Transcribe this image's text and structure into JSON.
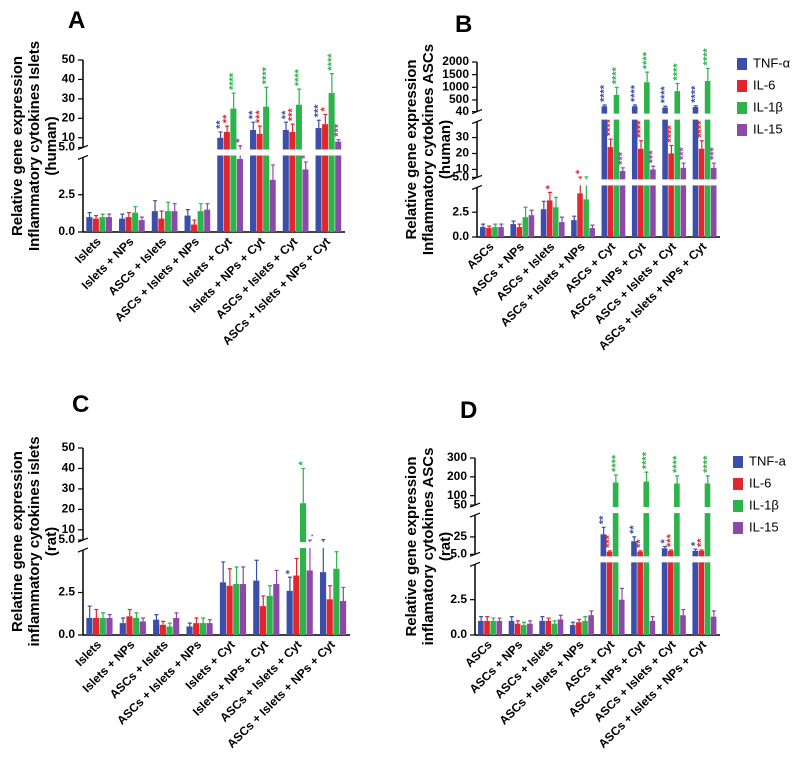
{
  "chart_data": [
    {
      "type": "bar",
      "panel": "A",
      "y_label": [
        "Relative gene expression",
        "Inflammatory cytokines Islets",
        "(human)"
      ],
      "categories": [
        "Islets",
        "Islets + NPs",
        "ASCs + Islets",
        "ASCs + Islets + NPs",
        "Islets + Cyt",
        "Islets + NPs + Cyt",
        "ASCs + Islets + Cyt",
        "ASCs + Islets + NPs + Cyt"
      ],
      "y_segments": [
        {
          "ylim": [
            0,
            5
          ],
          "yticks": [
            {
              "value": 0,
              "label": "0.0"
            },
            {
              "value": 2.5,
              "label": "2.5"
            },
            {
              "value": 5,
              "label": "5.0"
            }
          ]
        },
        {
          "ylim": [
            5,
            50
          ],
          "yticks": [
            10,
            20,
            30,
            40,
            50
          ]
        }
      ],
      "series": [
        {
          "color": "#3b4eaa",
          "values": [
            1.0,
            0.9,
            1.4,
            1.1,
            10,
            14,
            14,
            15
          ],
          "errors": [
            0.3,
            0.3,
            0.7,
            0.4,
            3,
            4,
            4,
            4
          ],
          "annotations": [
            null,
            null,
            null,
            null,
            "**",
            "**",
            "**",
            "***"
          ]
        },
        {
          "color": "#e3262d",
          "values": [
            0.9,
            1.0,
            0.9,
            0.5,
            13,
            12,
            13,
            17
          ],
          "errors": [
            0.2,
            0.3,
            0.5,
            0.3,
            3,
            4,
            4,
            5
          ],
          "annotations": [
            null,
            null,
            null,
            null,
            "**",
            "***",
            "***",
            "*"
          ]
        },
        {
          "color": "#2cb34a",
          "values": [
            1.0,
            1.3,
            1.4,
            1.4,
            25,
            26,
            27,
            33
          ],
          "errors": [
            0.2,
            0.4,
            0.6,
            0.5,
            8,
            10,
            8,
            10
          ],
          "annotations": [
            null,
            null,
            null,
            null,
            "****",
            "****",
            "****",
            "****"
          ]
        },
        {
          "color": "#8b4aa8",
          "values": [
            1.0,
            0.8,
            1.4,
            1.5,
            4.9,
            3.5,
            4.2,
            8
          ],
          "errors": [
            0.2,
            0.2,
            0.5,
            0.4,
            1,
            1,
            0.5,
            1
          ],
          "annotations": [
            null,
            null,
            null,
            null,
            "*",
            null,
            "*",
            "***"
          ]
        }
      ]
    },
    {
      "type": "bar",
      "panel": "B",
      "y_label": [
        "Relative gene expression",
        "Inflammatory cytokines ASCs",
        "(human)"
      ],
      "categories": [
        "ASCs",
        "ASCs + NPs",
        "ASCs + Islets",
        "ASCs + Islets + NPs",
        "ASCs + Cyt",
        "ASCs + NPs + Cyt",
        "ASCs + Islets + Cyt",
        "ASCs + Islets + NPs + Cyt"
      ],
      "y_segments": [
        {
          "ylim": [
            0,
            5
          ],
          "yticks": [
            {
              "value": 0,
              "label": "0.0"
            },
            {
              "value": 2.5,
              "label": "2.5"
            },
            {
              "value": 5,
              "label": "5.0"
            }
          ]
        },
        {
          "ylim": [
            5,
            40
          ],
          "yticks": [
            10,
            20,
            30,
            40
          ]
        },
        {
          "ylim": [
            40,
            2000
          ],
          "yticks": [
            500,
            1000,
            1500,
            2000
          ]
        }
      ],
      "legend": "right",
      "series": [
        {
          "name": "TNF-α",
          "color": "#3b4eaa",
          "values": [
            1.0,
            1.3,
            2.8,
            1.7,
            250,
            250,
            200,
            220
          ],
          "errors": [
            0.3,
            0.3,
            0.8,
            0.4,
            50,
            50,
            50,
            50
          ],
          "annotations": [
            null,
            null,
            null,
            null,
            "****",
            "****",
            "****",
            "****"
          ]
        },
        {
          "name": "IL-6",
          "color": "#e3262d",
          "values": [
            0.9,
            1.0,
            3.7,
            4.4,
            24,
            23,
            20,
            23
          ],
          "errors": [
            0.2,
            0.3,
            0.8,
            0.8,
            5,
            5,
            5,
            5
          ],
          "annotations": [
            null,
            null,
            "*",
            "*",
            "****",
            "****",
            "****",
            "****"
          ]
        },
        {
          "name": "IL-1β",
          "color": "#2cb34a",
          "values": [
            1.0,
            2.0,
            3.0,
            3.8,
            700,
            1200,
            850,
            1250
          ],
          "errors": [
            0.3,
            1.0,
            1.0,
            1.5,
            300,
            400,
            300,
            500
          ],
          "annotations": [
            null,
            null,
            null,
            null,
            "****",
            "****",
            "****",
            "****"
          ]
        },
        {
          "name": "IL-15",
          "color": "#8b4aa8",
          "values": [
            1.0,
            2.2,
            1.5,
            0.9,
            9,
            10,
            11,
            11
          ],
          "errors": [
            0.3,
            0.5,
            0.5,
            0.3,
            2,
            2,
            3,
            3
          ],
          "annotations": [
            null,
            null,
            null,
            null,
            "***",
            "***",
            "***",
            "***"
          ]
        }
      ]
    },
    {
      "type": "bar",
      "panel": "C",
      "y_label": [
        "Relatine gene expression",
        "inflammatory cytokines islets",
        "(rat)"
      ],
      "categories": [
        "Islets",
        "Islets + NPs",
        "ASCs + Islets",
        "ASCs + Islets + NPs",
        "Islets + Cyt",
        "Islets + NPs + Cyt",
        "ASCs + Islets + Cyt",
        "ASCs + Islets + NPs + Cyt"
      ],
      "y_segments": [
        {
          "ylim": [
            0,
            5
          ],
          "yticks": [
            {
              "value": 0,
              "label": "0.0"
            },
            {
              "value": 2.5,
              "label": "2.5"
            },
            {
              "value": 5,
              "label": "5.0"
            }
          ]
        },
        {
          "ylim": [
            5,
            50
          ],
          "yticks": [
            10,
            20,
            30,
            40,
            50
          ]
        }
      ],
      "series": [
        {
          "color": "#3b4eaa",
          "values": [
            1.0,
            0.7,
            0.9,
            0.5,
            3.1,
            3.2,
            2.6,
            3.7
          ],
          "errors": [
            0.7,
            0.3,
            0.3,
            0.2,
            1.2,
            1.2,
            0.8,
            1.5
          ],
          "annotations": [
            null,
            null,
            null,
            null,
            null,
            null,
            "*",
            null
          ]
        },
        {
          "color": "#e3262d",
          "values": [
            1.0,
            1.1,
            0.6,
            0.7,
            2.9,
            1.7,
            3.5,
            2.1
          ],
          "errors": [
            0.5,
            0.4,
            0.2,
            0.3,
            1.0,
            0.6,
            1.0,
            0.8
          ],
          "annotations": [
            null,
            null,
            null,
            null,
            null,
            null,
            null,
            null
          ]
        },
        {
          "color": "#2cb34a",
          "values": [
            1.0,
            1.0,
            0.5,
            0.7,
            3.0,
            2.3,
            23,
            3.9
          ],
          "errors": [
            0.3,
            0.3,
            0.2,
            0.3,
            1.0,
            0.6,
            17,
            1.0
          ],
          "annotations": [
            null,
            null,
            null,
            null,
            null,
            null,
            "*",
            "."
          ]
        },
        {
          "color": "#8b4aa8",
          "values": [
            1.0,
            0.8,
            1.0,
            0.7,
            3.0,
            3.0,
            3.8,
            2.0
          ],
          "errors": [
            0.2,
            0.2,
            0.3,
            0.2,
            1.0,
            0.8,
            1.2,
            0.8
          ],
          "annotations": [
            null,
            null,
            null,
            null,
            null,
            null,
            ".",
            null
          ]
        }
      ]
    },
    {
      "type": "bar",
      "panel": "D",
      "y_label": [
        "Relative gene expression",
        "inflamatory cytokines ASCs",
        "(rat)"
      ],
      "categories": [
        "ASCs",
        "ASCs + NPs",
        "ASCs + Islets",
        "ASCs + Islets + NPs",
        "ASCs + Cyt",
        "ASCs + NPs + Cyt",
        "ASCs + Islets + Cyt",
        "ASCs + Islets + NPs + Cyt"
      ],
      "y_segments": [
        {
          "ylim": [
            0,
            5
          ],
          "yticks": [
            {
              "value": 0,
              "label": "0.0"
            },
            {
              "value": 2.5,
              "label": "2.5"
            },
            {
              "value": 5,
              "label": "5.0"
            }
          ]
        },
        {
          "ylim": [
            5,
            50
          ],
          "yticks": [
            25,
            50
          ]
        },
        {
          "ylim": [
            50,
            300
          ],
          "yticks": [
            100,
            200,
            300
          ]
        }
      ],
      "legend": "right",
      "series": [
        {
          "name": "TNF-a",
          "color": "#3b4eaa",
          "values": [
            1.0,
            1.0,
            1.0,
            0.7,
            28,
            20,
            12,
            9
          ],
          "errors": [
            0.3,
            0.3,
            0.3,
            0.2,
            8,
            5,
            2,
            2
          ],
          "annotations": [
            null,
            null,
            null,
            null,
            "**",
            "**",
            "*",
            "*"
          ]
        },
        {
          "name": "IL-6",
          "color": "#e3262d",
          "values": [
            1.0,
            0.8,
            1.0,
            0.9,
            8,
            8,
            9,
            9
          ],
          "errors": [
            0.3,
            0.2,
            0.2,
            0.2,
            1,
            1,
            1,
            1
          ],
          "annotations": [
            null,
            null,
            null,
            null,
            "***",
            "**",
            "***",
            "**"
          ]
        },
        {
          "name": "IL-1β",
          "color": "#2cb34a",
          "values": [
            1.0,
            0.7,
            0.8,
            1.0,
            170,
            175,
            165,
            165
          ],
          "errors": [
            0.2,
            0.2,
            0.2,
            0.3,
            40,
            50,
            40,
            40
          ],
          "annotations": [
            null,
            null,
            null,
            null,
            "****",
            "****",
            "****",
            "****"
          ]
        },
        {
          "name": "IL-15",
          "color": "#8b4aa8",
          "values": [
            1.0,
            0.8,
            1.1,
            1.4,
            2.5,
            1.0,
            1.4,
            1.3
          ],
          "errors": [
            0.2,
            0.2,
            0.3,
            0.3,
            0.8,
            0.3,
            0.4,
            0.4
          ],
          "annotations": [
            null,
            null,
            null,
            null,
            null,
            null,
            null,
            null
          ]
        }
      ]
    }
  ]
}
